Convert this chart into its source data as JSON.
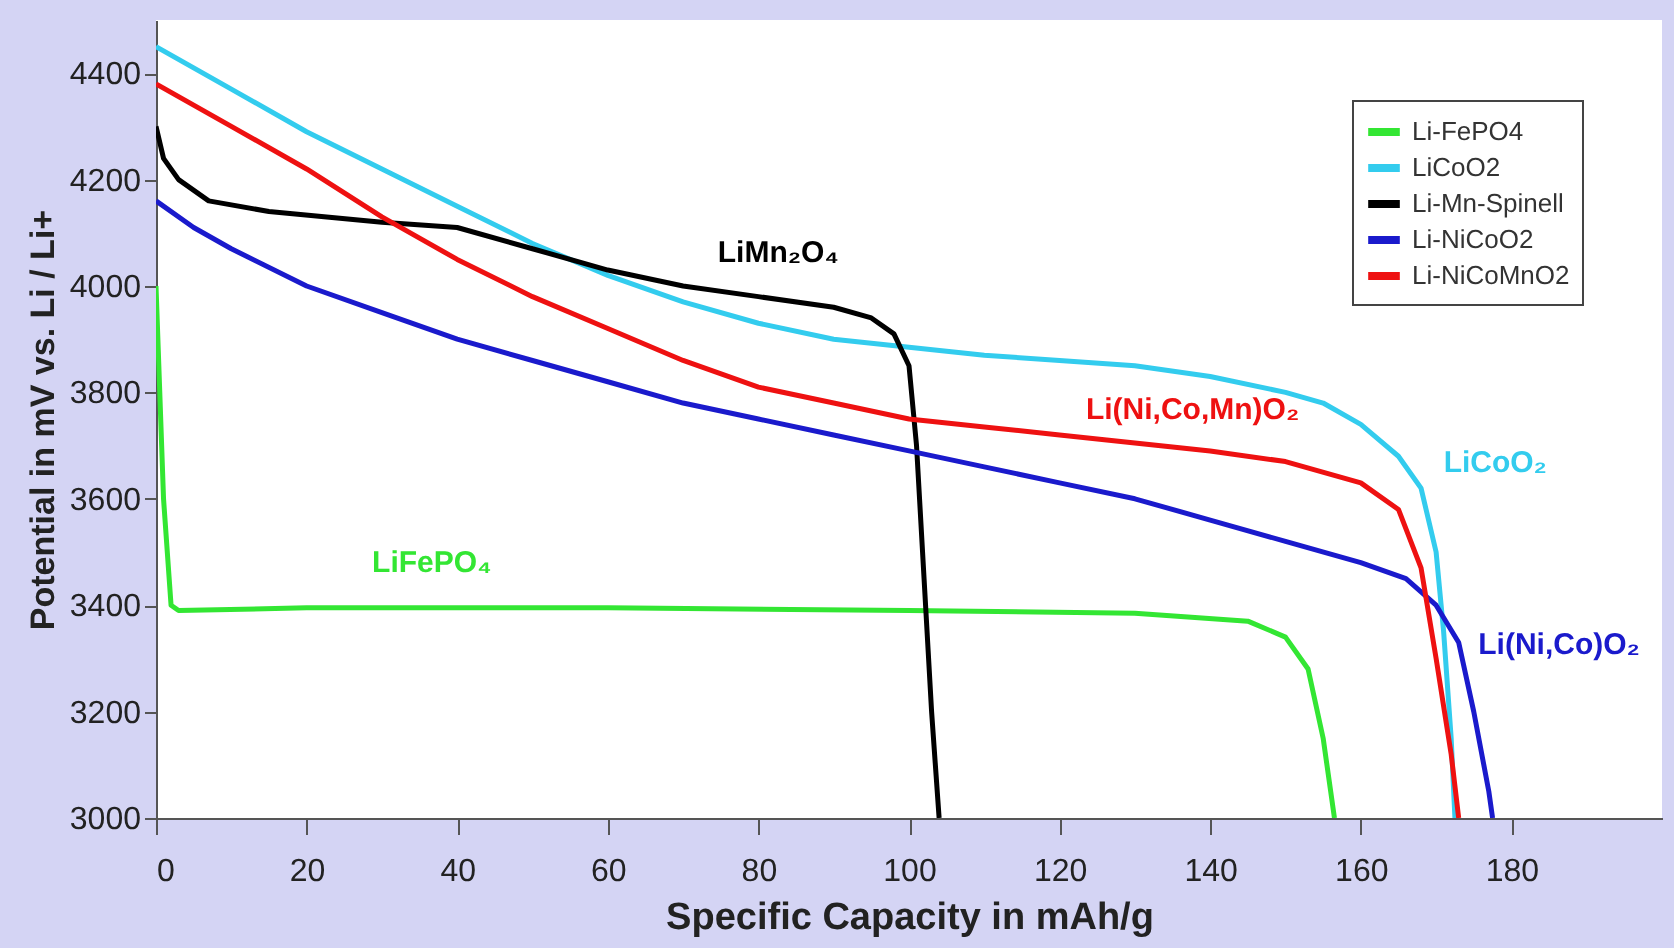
{
  "chart_data": {
    "type": "line",
    "xlabel": "Specific Capacity in mAh/g",
    "ylabel": "Potential in mV vs. Li / Li+",
    "xlim": [
      0,
      200
    ],
    "ylim": [
      3000,
      4500
    ],
    "xticks": [
      0,
      20,
      40,
      60,
      80,
      100,
      120,
      140,
      160,
      180
    ],
    "yticks": [
      3000,
      3200,
      3400,
      3600,
      3800,
      4000,
      4200,
      4400
    ],
    "grid": false,
    "legend": "top right",
    "marker": "none",
    "line_style": "solid",
    "series": [
      {
        "name": "Li-FePO4",
        "color": "#33e633",
        "x": [
          0,
          0.5,
          1,
          2,
          3,
          20,
          60,
          100,
          130,
          145,
          150,
          153,
          155,
          156,
          156.5
        ],
        "values": [
          4000,
          3800,
          3600,
          3400,
          3390,
          3395,
          3395,
          3390,
          3385,
          3370,
          3340,
          3280,
          3150,
          3050,
          3000
        ]
      },
      {
        "name": "LiCoO2",
        "color": "#33ccee",
        "x": [
          0,
          10,
          20,
          30,
          40,
          50,
          60,
          70,
          80,
          90,
          100,
          110,
          120,
          130,
          140,
          150,
          155,
          160,
          165,
          168,
          170,
          171,
          172,
          172.5
        ],
        "values": [
          4450,
          4370,
          4290,
          4220,
          4150,
          4080,
          4020,
          3970,
          3930,
          3900,
          3885,
          3870,
          3860,
          3850,
          3830,
          3800,
          3780,
          3740,
          3680,
          3620,
          3500,
          3350,
          3150,
          3000
        ]
      },
      {
        "name": "Li-Mn-Spinell",
        "color": "#000000",
        "x": [
          0,
          1,
          3,
          7,
          15,
          30,
          40,
          50,
          60,
          70,
          80,
          90,
          95,
          98,
          100,
          101,
          102,
          103,
          104
        ],
        "values": [
          4300,
          4240,
          4200,
          4160,
          4140,
          4120,
          4110,
          4070,
          4030,
          4000,
          3980,
          3960,
          3940,
          3910,
          3850,
          3700,
          3450,
          3200,
          3000
        ]
      },
      {
        "name": "Li-NiCoO2",
        "color": "#1a1acc",
        "x": [
          0,
          5,
          10,
          20,
          30,
          40,
          50,
          60,
          70,
          80,
          90,
          100,
          110,
          120,
          130,
          140,
          150,
          160,
          166,
          170,
          173,
          175,
          177,
          177.5
        ],
        "values": [
          4160,
          4110,
          4070,
          4000,
          3950,
          3900,
          3860,
          3820,
          3780,
          3750,
          3720,
          3690,
          3660,
          3630,
          3600,
          3560,
          3520,
          3480,
          3450,
          3400,
          3330,
          3200,
          3050,
          3000
        ]
      },
      {
        "name": "Li-NiCoMnO2",
        "color": "#ee1111",
        "x": [
          0,
          10,
          20,
          30,
          40,
          50,
          60,
          70,
          80,
          90,
          100,
          110,
          120,
          130,
          140,
          150,
          160,
          165,
          168,
          170,
          172,
          173
        ],
        "values": [
          4380,
          4300,
          4220,
          4130,
          4050,
          3980,
          3920,
          3860,
          3810,
          3780,
          3750,
          3735,
          3720,
          3705,
          3690,
          3670,
          3630,
          3580,
          3470,
          3300,
          3120,
          3000
        ]
      }
    ],
    "annotations": [
      "LiMn₂O₄",
      "Li(Ni,Co,Mn)O₂",
      "LiCoO₂",
      "LiFePO₄",
      "Li(Ni,Co)O₂"
    ]
  }
}
